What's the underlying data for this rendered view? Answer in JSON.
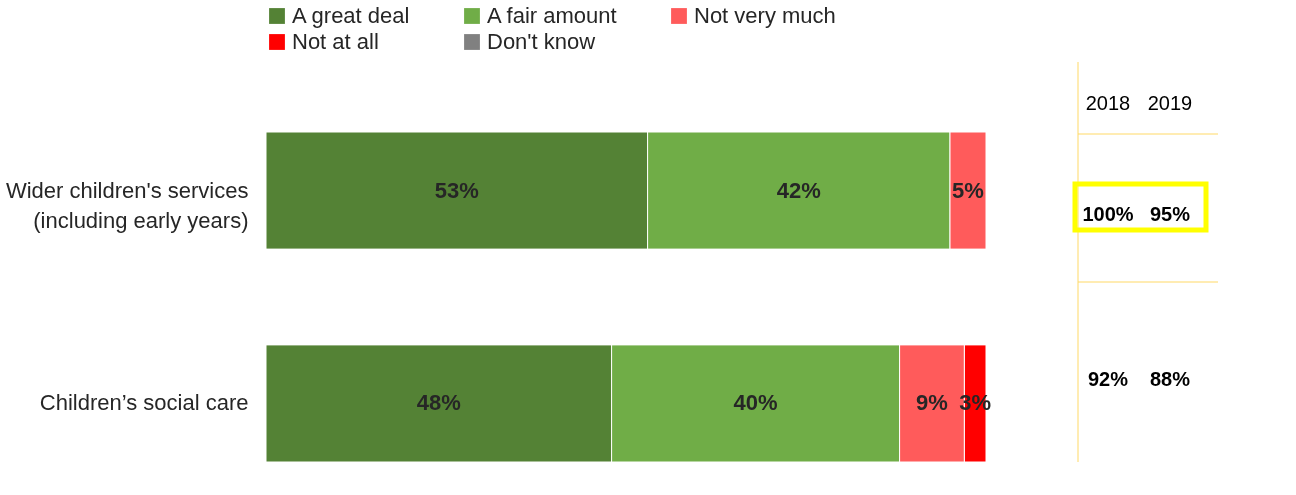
{
  "chart_data": {
    "type": "bar",
    "orientation": "horizontal",
    "stacked": true,
    "legend": "top",
    "categories": [
      "Wider children's services (including early years)",
      "Children’s social care"
    ],
    "series": [
      {
        "name": "A great deal",
        "color": "#548235",
        "values": [
          53,
          48
        ],
        "value_labels": [
          "53%",
          "48%"
        ]
      },
      {
        "name": "A fair amount",
        "color": "#70ad47",
        "values": [
          42,
          40
        ],
        "value_labels": [
          "42%",
          "40%"
        ]
      },
      {
        "name": "Not very much",
        "color": "#ff5b5b",
        "values": [
          5,
          9
        ],
        "value_labels": [
          "5%",
          "9%"
        ]
      },
      {
        "name": "Not at all",
        "color": "#ff0000",
        "values": [
          null,
          3
        ],
        "value_labels": [
          null,
          "3%"
        ]
      },
      {
        "name": "Don't know",
        "color": "#808080",
        "values": [
          null,
          null
        ],
        "value_labels": [
          null,
          null
        ]
      }
    ],
    "annotations": [
      "2018",
      "2019",
      "100%",
      "95%",
      "92%",
      "88%"
    ]
  }
}
